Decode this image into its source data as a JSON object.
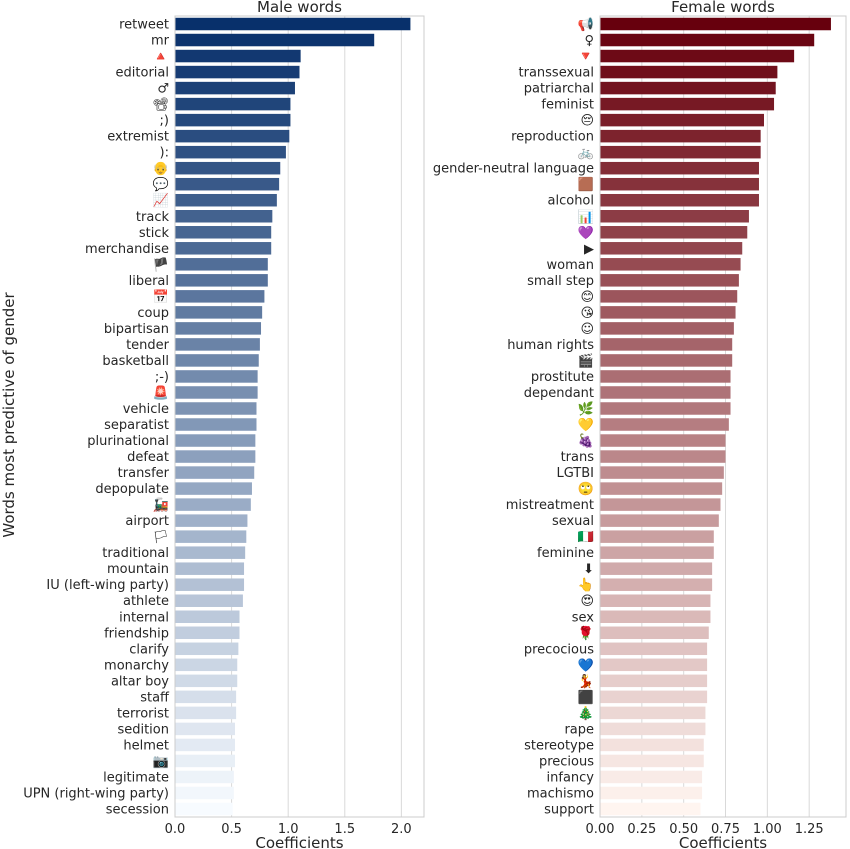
{
  "figure": {
    "ylabel": "Words most predictive of gender"
  },
  "chart_data": [
    {
      "type": "bar",
      "orientation": "horizontal",
      "title": "Male words",
      "xlabel": "Coefficients",
      "ylabel": "Words most predictive of gender",
      "xlim": [
        0,
        2.2
      ],
      "xticks": [
        "0.0",
        "0.5",
        "1.0",
        "1.5",
        "2.0"
      ],
      "xtick_values": [
        0,
        0.5,
        1.0,
        1.5,
        2.0
      ],
      "grid": "vertical",
      "palette": "Blues_r",
      "color_start": "#08306b",
      "color_end": "#f7fbff",
      "categories": [
        "retweet",
        "mr",
        "🔺",
        "editorial",
        "♂",
        "📽",
        ";)",
        "extremist",
        "):",
        "👴",
        "💬",
        "📈",
        "track",
        "stick",
        "merchandise",
        "🏴",
        "liberal",
        "📅",
        "coup",
        "bipartisan",
        "tender",
        "basketball",
        ";-)",
        "🚨",
        "vehicle",
        "separatist",
        "plurinational",
        "defeat",
        "transfer",
        "depopulate",
        "🚂",
        "airport",
        "🏳",
        "traditional",
        "mountain",
        "IU (left-wing party)",
        "athlete",
        "internal",
        "friendship",
        "clarify",
        "monarchy",
        "altar boy",
        "staff",
        "terrorist",
        "sedition",
        "helmet",
        "📷",
        "legitimate",
        "UPN (right-wing party)",
        "secession"
      ],
      "values": [
        2.08,
        1.76,
        1.11,
        1.1,
        1.06,
        1.02,
        1.02,
        1.01,
        0.98,
        0.93,
        0.92,
        0.9,
        0.86,
        0.85,
        0.85,
        0.82,
        0.82,
        0.79,
        0.77,
        0.76,
        0.75,
        0.74,
        0.73,
        0.73,
        0.72,
        0.72,
        0.71,
        0.71,
        0.7,
        0.68,
        0.67,
        0.64,
        0.63,
        0.62,
        0.61,
        0.61,
        0.6,
        0.57,
        0.57,
        0.56,
        0.55,
        0.55,
        0.54,
        0.54,
        0.53,
        0.53,
        0.53,
        0.52,
        0.52,
        0.51
      ]
    },
    {
      "type": "bar",
      "orientation": "horizontal",
      "title": "Female words",
      "xlabel": "Coefficients",
      "xlim": [
        0,
        1.47
      ],
      "xticks": [
        "0.00",
        "0.25",
        "0.50",
        "0.75",
        "1.00",
        "1.25"
      ],
      "xtick_values": [
        0,
        0.25,
        0.5,
        0.75,
        1.0,
        1.25
      ],
      "grid": "vertical",
      "palette": "Reds_r",
      "color_start": "#67000d",
      "color_end": "#fff5f0",
      "categories": [
        "📢",
        "♀",
        "🔻",
        "transsexual",
        "patriarchal",
        "feminist",
        "😔",
        "reproduction",
        "🚲",
        "gender-neutral language",
        "🟫",
        "alcohol",
        "📊",
        "💜",
        "▶",
        "woman",
        "small step",
        "😊",
        "😘",
        "☺",
        "human rights",
        "🎬",
        "prostitute",
        "dependant",
        "🌿",
        "💛",
        "🍇",
        "trans",
        "LGTBI",
        "🙄",
        "mistreatment",
        "sexual",
        "🇮🇹",
        "feminine",
        "⬇",
        "👆",
        "😍",
        "sex",
        "🌹",
        "precocious",
        "💙",
        "💃",
        "⬛",
        "🎄",
        "rape",
        "stereotype",
        "precious",
        "infancy",
        "machismo",
        "support"
      ],
      "values": [
        1.38,
        1.28,
        1.16,
        1.06,
        1.05,
        1.04,
        0.98,
        0.96,
        0.96,
        0.95,
        0.95,
        0.95,
        0.89,
        0.88,
        0.85,
        0.84,
        0.83,
        0.82,
        0.81,
        0.8,
        0.79,
        0.79,
        0.78,
        0.78,
        0.78,
        0.77,
        0.75,
        0.75,
        0.74,
        0.73,
        0.72,
        0.71,
        0.68,
        0.68,
        0.67,
        0.67,
        0.66,
        0.66,
        0.65,
        0.64,
        0.64,
        0.64,
        0.64,
        0.63,
        0.63,
        0.62,
        0.62,
        0.61,
        0.61,
        0.6
      ]
    }
  ]
}
